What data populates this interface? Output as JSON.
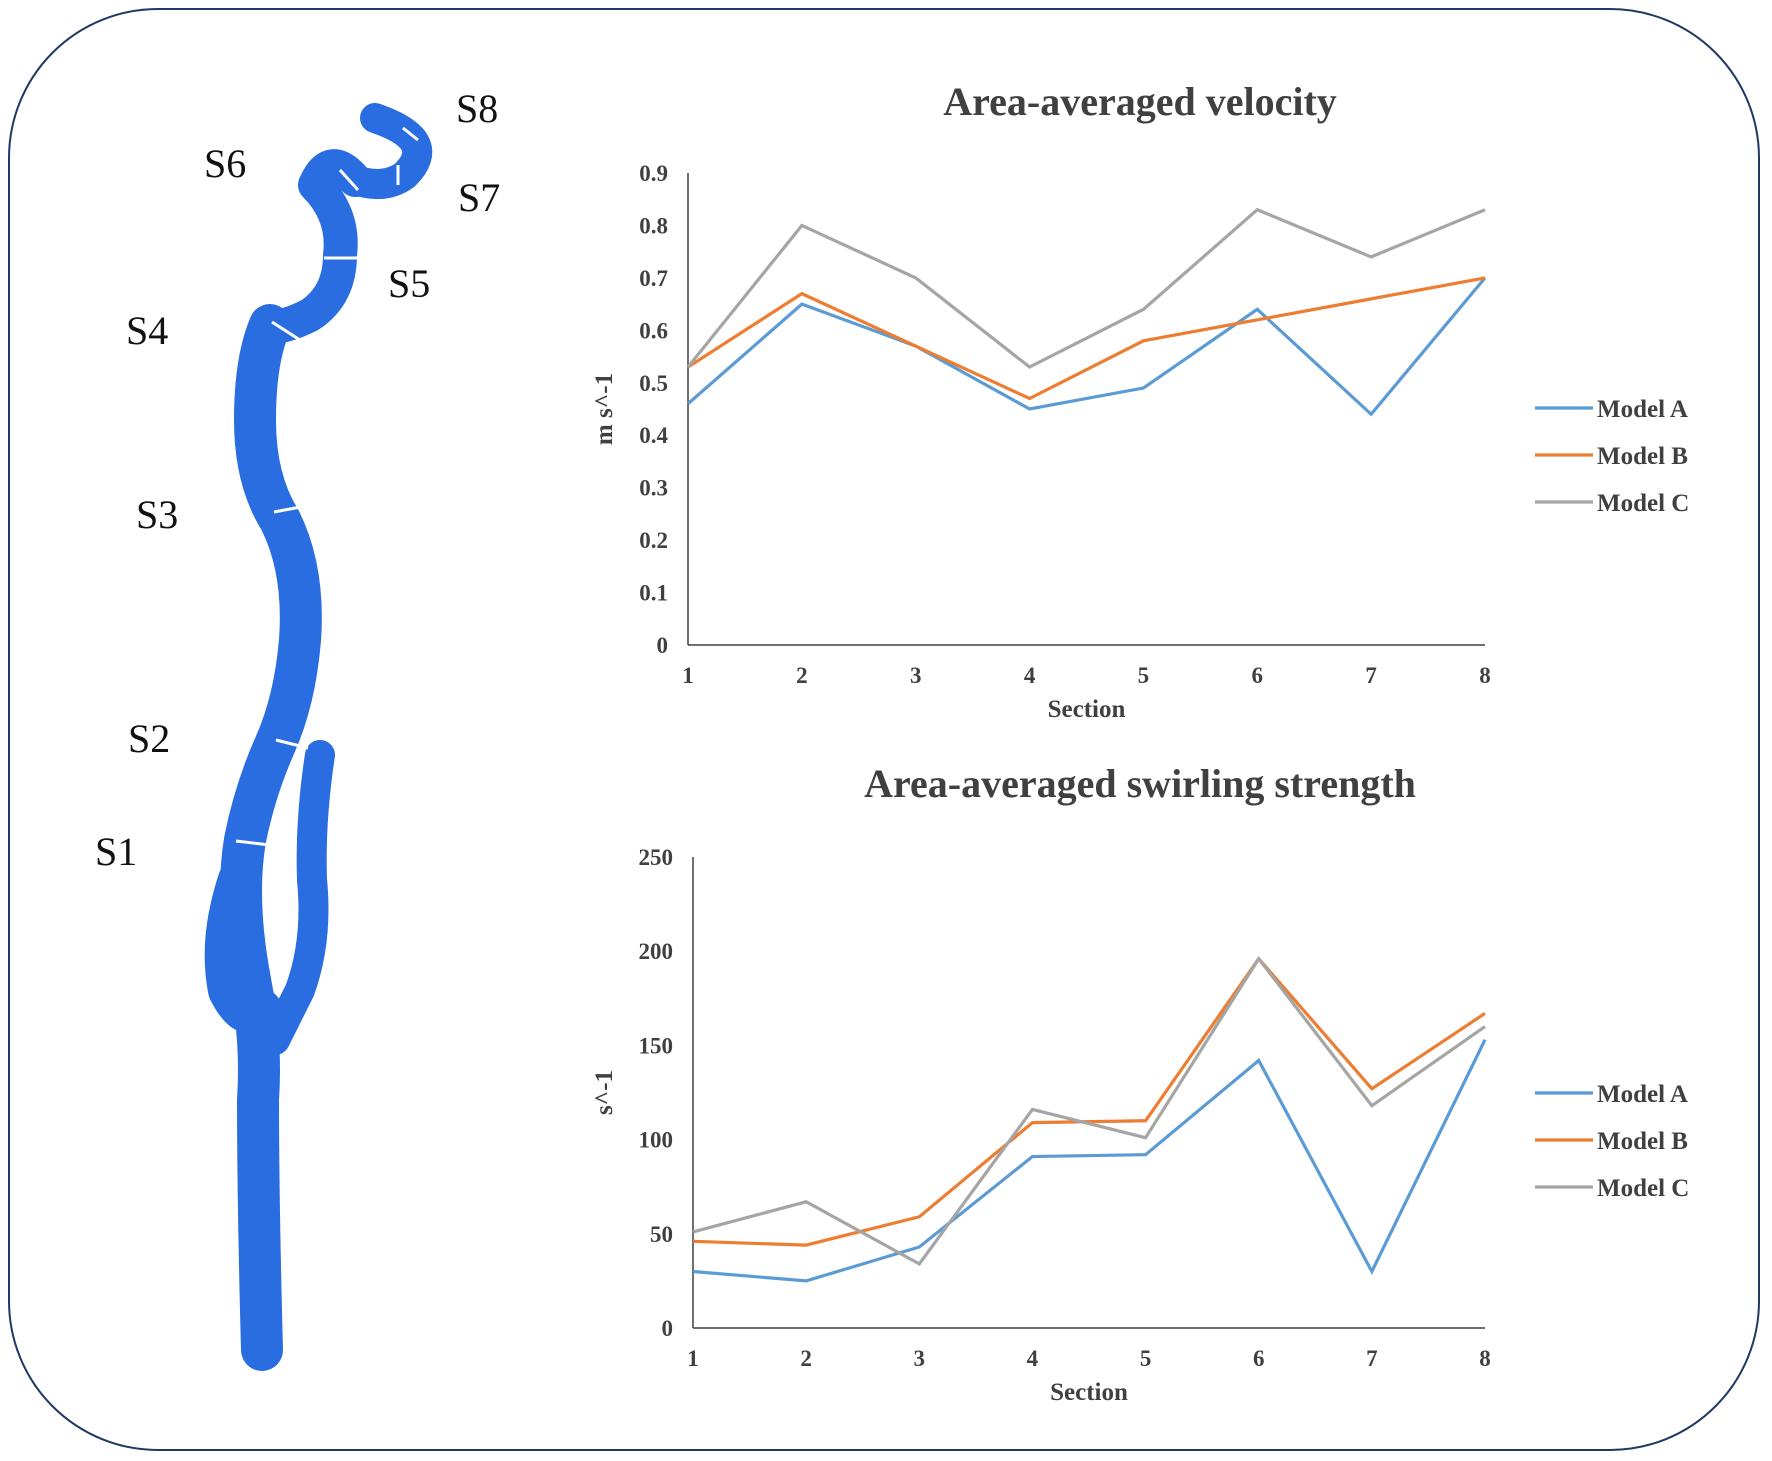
{
  "section_labels": [
    "S1",
    "S2",
    "S3",
    "S4",
    "S5",
    "S6",
    "S7",
    "S8"
  ],
  "chart_data": [
    {
      "type": "line",
      "title": "Area-averaged velocity",
      "xlabel": "Section",
      "ylabel": "m s^-1",
      "x": [
        1,
        2,
        3,
        4,
        5,
        6,
        7,
        8
      ],
      "ylim": [
        0,
        0.9
      ],
      "yticks": [
        "0",
        "0.1",
        "0.2",
        "0.3",
        "0.4",
        "0.5",
        "0.6",
        "0.7",
        "0.8",
        "0.9"
      ],
      "grid": false,
      "legend": "right",
      "series": [
        {
          "name": "Model A",
          "color": "#5b9bd5",
          "values": [
            0.46,
            0.65,
            0.57,
            0.45,
            0.49,
            0.64,
            0.44,
            0.7
          ]
        },
        {
          "name": "Model B",
          "color": "#ed7d31",
          "values": [
            0.53,
            0.67,
            0.57,
            0.47,
            0.58,
            0.62,
            0.66,
            0.7
          ]
        },
        {
          "name": "Model C",
          "color": "#a5a5a5",
          "values": [
            0.53,
            0.8,
            0.7,
            0.53,
            0.64,
            0.83,
            0.74,
            0.83
          ]
        }
      ]
    },
    {
      "type": "line",
      "title": "Area-averaged swirling strength",
      "xlabel": "Section",
      "ylabel": "s^-1",
      "x": [
        1,
        2,
        3,
        4,
        5,
        6,
        7,
        8
      ],
      "ylim": [
        0,
        250
      ],
      "yticks": [
        "0",
        "50",
        "100",
        "150",
        "200",
        "250"
      ],
      "grid": false,
      "legend": "right",
      "series": [
        {
          "name": "Model A",
          "color": "#5b9bd5",
          "values": [
            30,
            25,
            43,
            91,
            92,
            142,
            30,
            153
          ]
        },
        {
          "name": "Model B",
          "color": "#ed7d31",
          "values": [
            46,
            44,
            59,
            109,
            110,
            196,
            127,
            167
          ]
        },
        {
          "name": "Model C",
          "color": "#a5a5a5",
          "values": [
            51,
            67,
            34,
            116,
            101,
            196,
            118,
            160
          ]
        }
      ]
    }
  ]
}
